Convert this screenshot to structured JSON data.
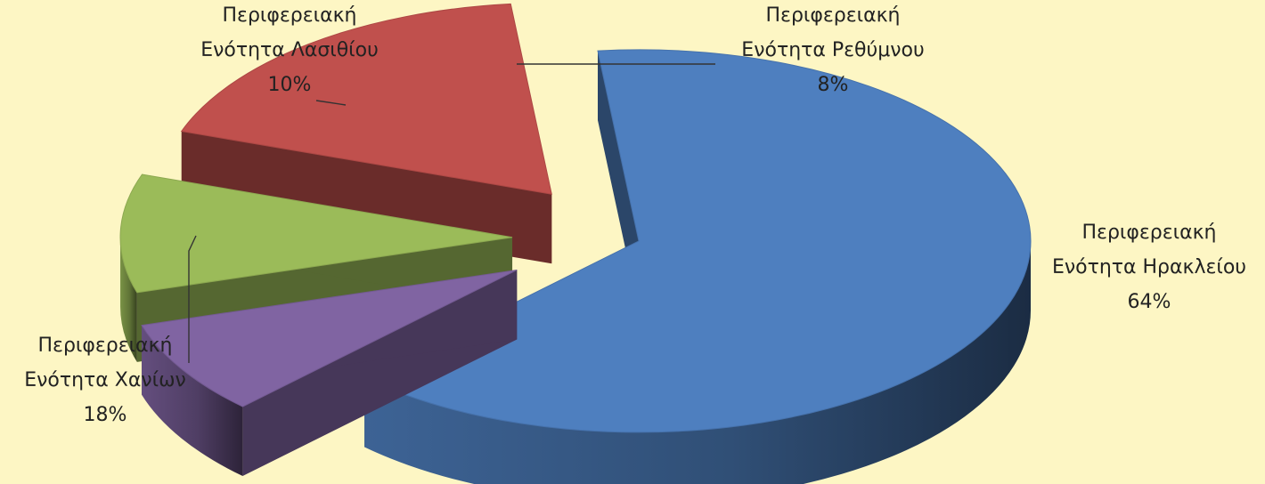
{
  "chart_data": {
    "type": "pie",
    "style": "3d-exploded",
    "categories": [
      "Περιφερειακή Ενότητα Ηρακλείου",
      "Περιφερειακή Ενότητα Ρεθύμνου",
      "Περιφερειακή Ενότητα Λασιθίου",
      "Περιφερειακή Ενότητα Χανίων"
    ],
    "values": [
      64,
      8,
      10,
      18
    ],
    "unit": "%",
    "labels": [
      {
        "line1": "Περιφερειακή",
        "line2": "Ενότητα Ηρακλείου",
        "percent": "64%"
      },
      {
        "line1": "Περιφερειακή",
        "line2": "Ενότητα Ρεθύμνου",
        "percent": "8%"
      },
      {
        "line1": "Περιφερειακή",
        "line2": "Ενότητα Λασιθίου",
        "percent": "10%"
      },
      {
        "line1": "Περιφερειακή",
        "line2": "Ενότητα Χανίων",
        "percent": "18%"
      }
    ],
    "colors": [
      "#4e7fbf",
      "#8064a2",
      "#9bbb59",
      "#c0504d"
    ],
    "legend": "none",
    "background": "#fdf6c4"
  }
}
